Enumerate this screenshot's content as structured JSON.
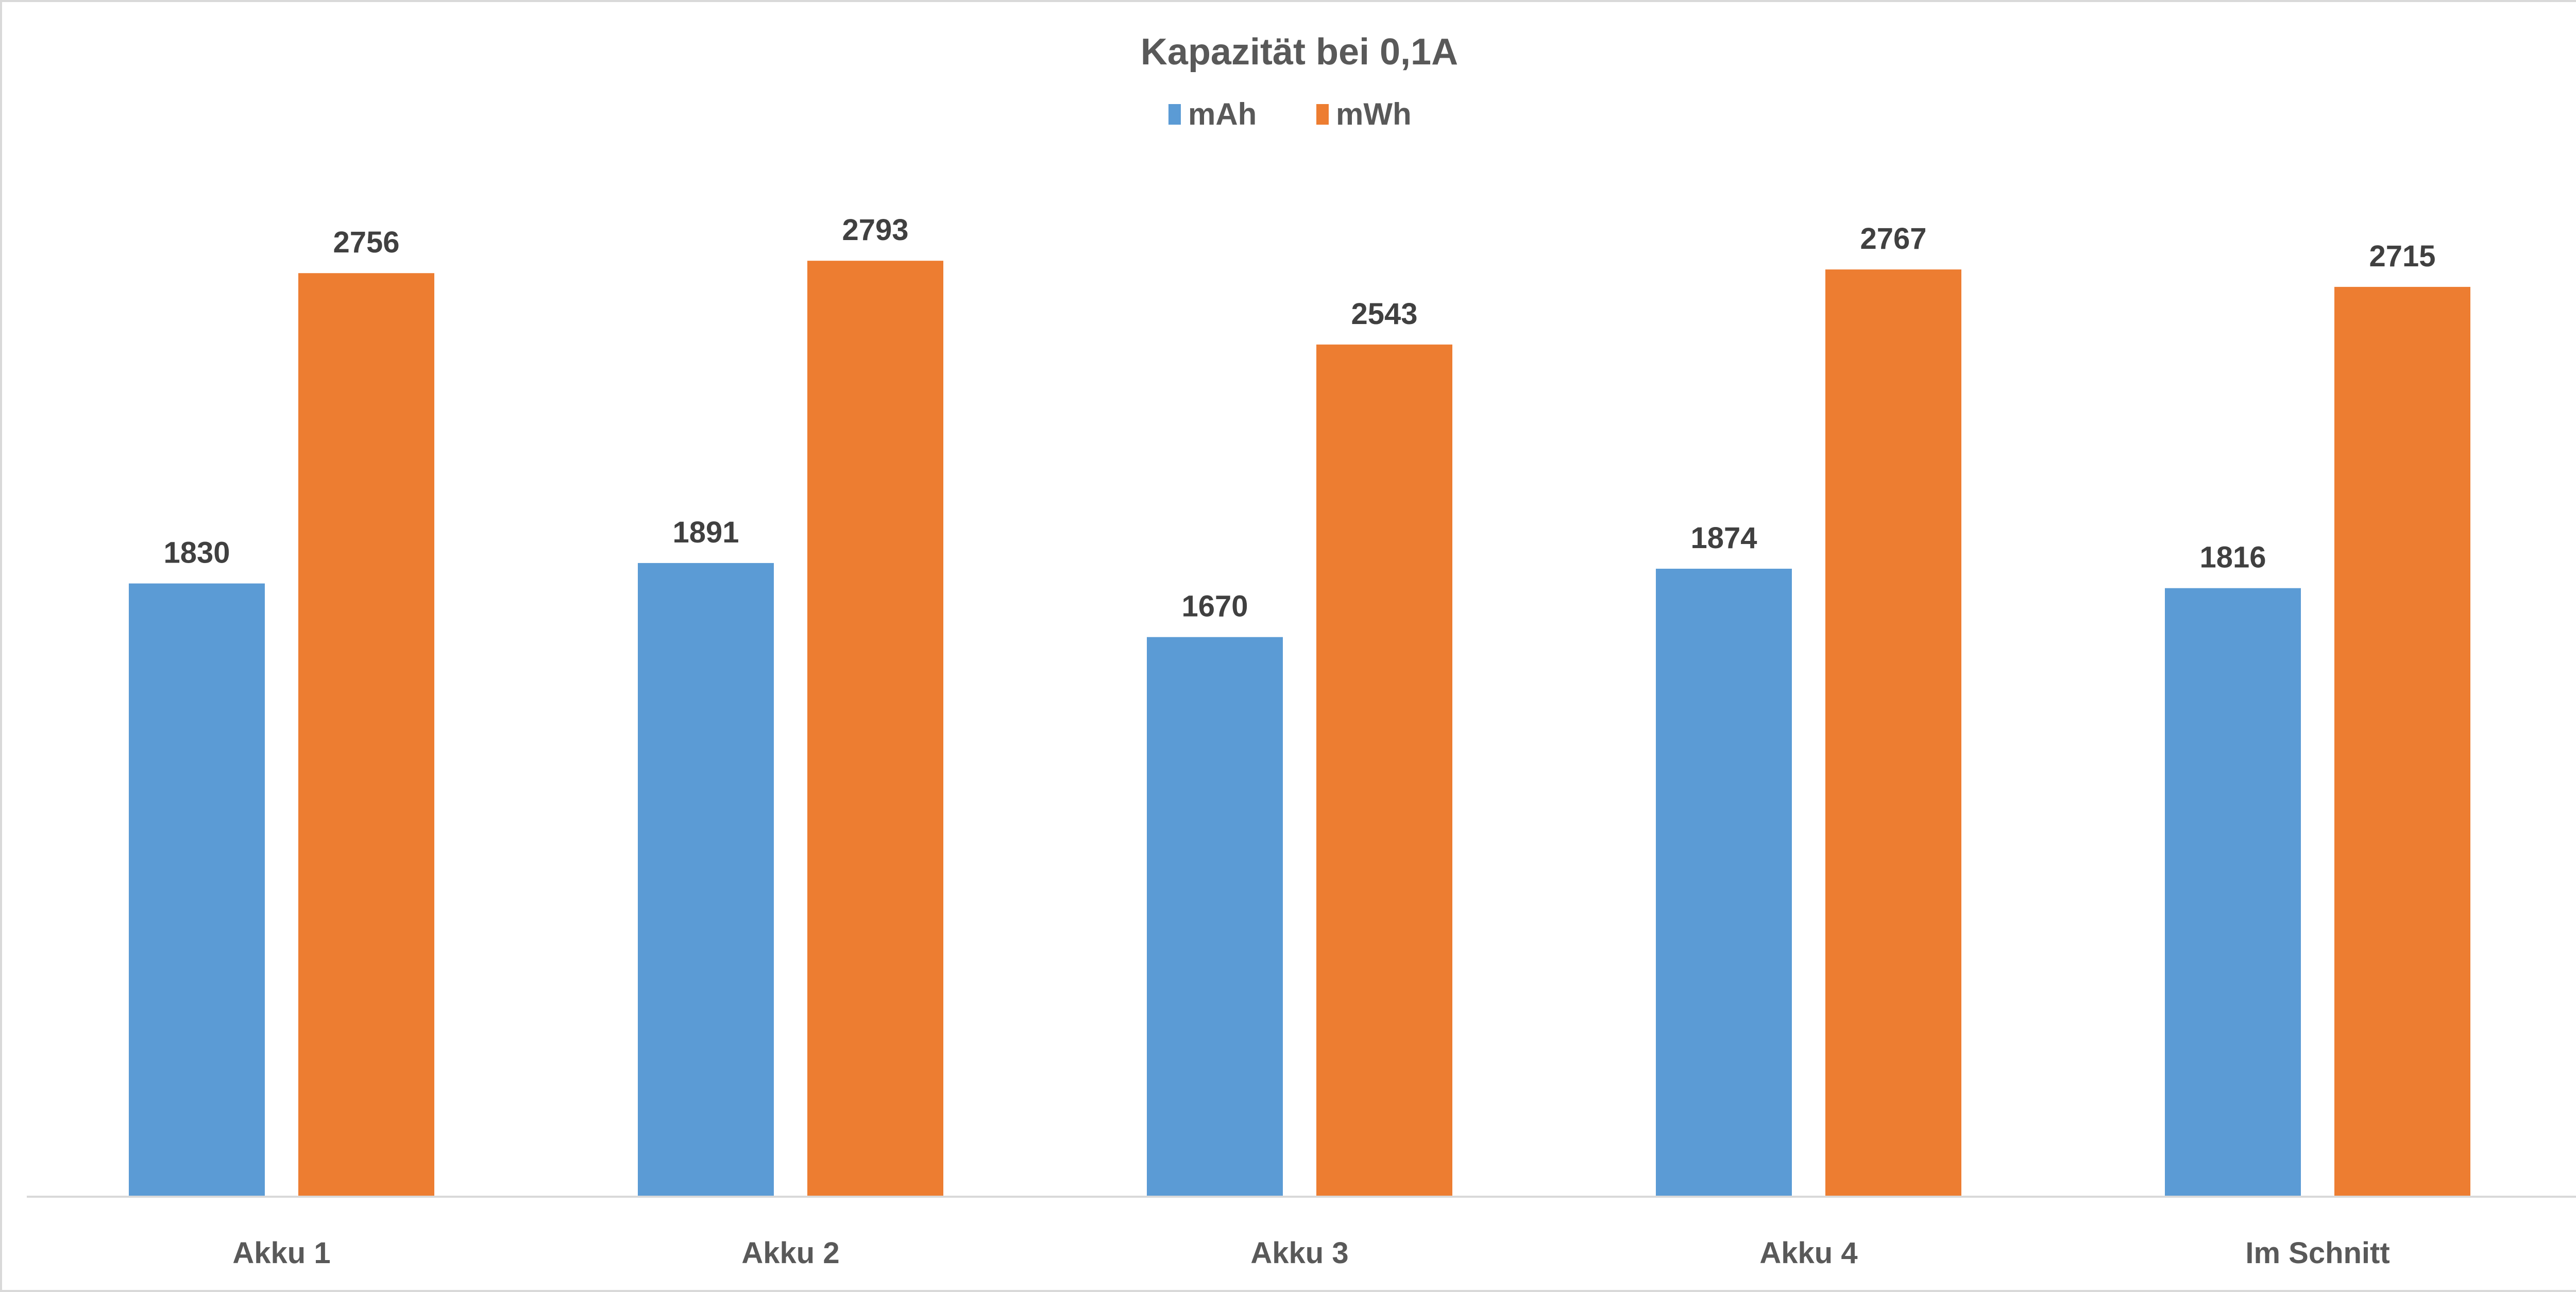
{
  "chart_data": {
    "type": "bar",
    "title": "Kapazität bei 0,1A",
    "categories": [
      "Akku 1",
      "Akku 2",
      "Akku 3",
      "Akku 4",
      "Im Schnitt"
    ],
    "series": [
      {
        "name": "mAh",
        "color": "#5B9BD5",
        "values": [
          1830,
          1891,
          1670,
          1874,
          1816
        ]
      },
      {
        "name": "mWh",
        "color": "#ED7D31",
        "values": [
          2756,
          2793,
          2543,
          2767,
          2715
        ]
      }
    ],
    "xlabel": "",
    "ylabel": "",
    "ylim": [
      0,
      3000
    ],
    "grid": false,
    "legend": "top-center",
    "data_labels": true
  }
}
